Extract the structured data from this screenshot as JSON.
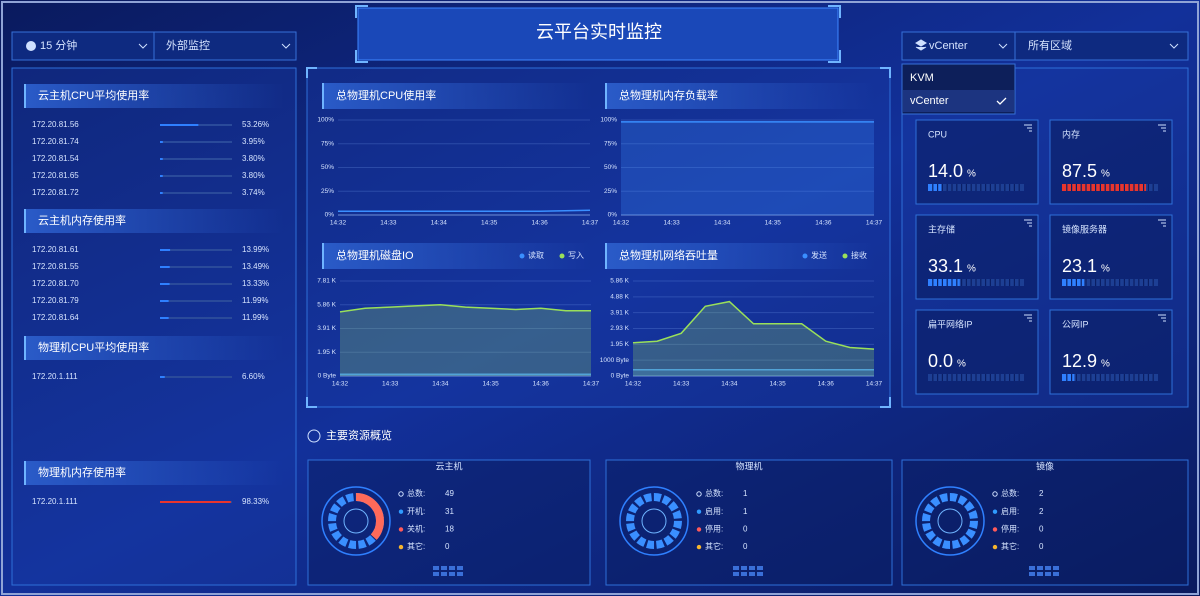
{
  "header": {
    "title": "云平台实时监控"
  },
  "toolbar": {
    "time": "15 分钟",
    "monitor": "外部监控",
    "platform": "vCenter",
    "region": "所有区域",
    "dropdown_items": [
      "KVM",
      "vCenter"
    ]
  },
  "left_panel": [
    {
      "title": "云主机CPU平均使用率",
      "color": "#2f80ff",
      "rows": [
        {
          "ip": "172.20.81.56",
          "value": 53.26,
          "label": "53.26%"
        },
        {
          "ip": "172.20.81.74",
          "value": 3.95,
          "label": "3.95%"
        },
        {
          "ip": "172.20.81.54",
          "value": 3.8,
          "label": "3.80%"
        },
        {
          "ip": "172.20.81.65",
          "value": 3.8,
          "label": "3.80%"
        },
        {
          "ip": "172.20.81.72",
          "value": 3.74,
          "label": "3.74%"
        }
      ]
    },
    {
      "title": "云主机内存使用率",
      "color": "#2f80ff",
      "rows": [
        {
          "ip": "172.20.81.61",
          "value": 13.99,
          "label": "13.99%"
        },
        {
          "ip": "172.20.81.55",
          "value": 13.49,
          "label": "13.49%"
        },
        {
          "ip": "172.20.81.70",
          "value": 13.33,
          "label": "13.33%"
        },
        {
          "ip": "172.20.81.79",
          "value": 11.99,
          "label": "11.99%"
        },
        {
          "ip": "172.20.81.64",
          "value": 11.99,
          "label": "11.99%"
        }
      ]
    },
    {
      "title": "物理机CPU平均使用率",
      "color": "#2f80ff",
      "rows": [
        {
          "ip": "172.20.1.111",
          "value": 6.6,
          "label": "6.60%"
        }
      ]
    },
    {
      "title": "物理机内存使用率",
      "color": "#e8352e",
      "rows": [
        {
          "ip": "172.20.1.111",
          "value": 98.33,
          "label": "98.33%"
        }
      ]
    }
  ],
  "chart_data": [
    {
      "type": "line",
      "title": "总物理机CPU使用率",
      "x": [
        "14:32",
        "14:33",
        "14:34",
        "14:35",
        "14:36",
        "14:37"
      ],
      "series": [
        {
          "color": "#3a8fff",
          "values": [
            4,
            4,
            4,
            4,
            4,
            5
          ]
        }
      ],
      "ylim": [
        0,
        100
      ],
      "yticks": [
        {
          "value": 0,
          "label": "0%"
        },
        {
          "value": 25,
          "label": "25%"
        },
        {
          "value": 50,
          "label": "50%"
        },
        {
          "value": 75,
          "label": "75%"
        },
        {
          "value": 100,
          "label": "100%"
        }
      ]
    },
    {
      "type": "area",
      "title": "总物理机内存负载率",
      "x": [
        "14:32",
        "14:33",
        "14:34",
        "14:35",
        "14:36",
        "14:37"
      ],
      "series": [
        {
          "color": "#3a8fff",
          "values": [
            98,
            98,
            98,
            98,
            98,
            98
          ]
        }
      ],
      "ylim": [
        0,
        100
      ],
      "yticks": [
        {
          "value": 0,
          "label": "0%"
        },
        {
          "value": 25,
          "label": "25%"
        },
        {
          "value": 50,
          "label": "50%"
        },
        {
          "value": 75,
          "label": "75%"
        },
        {
          "value": 100,
          "label": "100%"
        }
      ]
    },
    {
      "type": "area",
      "title": "总物理机磁盘IO",
      "x": [
        "14:32",
        null,
        "14:33",
        null,
        "14:34",
        null,
        "14:35",
        null,
        "14:36",
        null,
        "14:37"
      ],
      "series": [
        {
          "name": "读取",
          "color": "#3a8fff",
          "values": [
            150,
            150,
            150,
            150,
            150,
            150,
            150,
            150,
            150,
            150,
            150
          ]
        },
        {
          "name": "写入",
          "color": "#9ae05a",
          "values": [
            5400,
            5700,
            5800,
            5900,
            6000,
            5800,
            5700,
            5600,
            5700,
            5500,
            5500
          ]
        }
      ],
      "ylim": [
        0,
        8000
      ],
      "yticks": [
        {
          "value": 0,
          "label": "0 Byte"
        },
        {
          "value": 2000,
          "label": "1.95 K"
        },
        {
          "value": 4000,
          "label": "3.91 K"
        },
        {
          "value": 6000,
          "label": "5.86 K"
        },
        {
          "value": 8000,
          "label": "7.81 K"
        }
      ]
    },
    {
      "type": "area",
      "title": "总物理机网络吞吐量",
      "x": [
        "14:32",
        null,
        "14:33",
        null,
        "14:34",
        null,
        "14:35",
        null,
        "14:36",
        null,
        "14:37"
      ],
      "series": [
        {
          "name": "发送",
          "color": "#3a8fff",
          "values": [
            400,
            400,
            400,
            400,
            400,
            400,
            400,
            400,
            400,
            400,
            400
          ]
        },
        {
          "name": "接收",
          "color": "#9ae05a",
          "values": [
            2100,
            2200,
            2700,
            4400,
            4700,
            3300,
            3300,
            3300,
            2200,
            1800,
            1700
          ]
        }
      ],
      "ylim": [
        0,
        6000
      ],
      "yticks": [
        {
          "value": 0,
          "label": "0 Byte"
        },
        {
          "value": 1000,
          "label": "1000 Byte"
        },
        {
          "value": 2000,
          "label": "1.95 K"
        },
        {
          "value": 3000,
          "label": "2.93 K"
        },
        {
          "value": 4000,
          "label": "3.91 K"
        },
        {
          "value": 5000,
          "label": "4.88 K"
        },
        {
          "value": 6000,
          "label": "5.86 K"
        }
      ]
    }
  ],
  "gauges": [
    {
      "name": "CPU",
      "value": 14.0,
      "label": "14.0",
      "unit": "%",
      "color": "#2f80ff"
    },
    {
      "name": "内存",
      "value": 87.5,
      "label": "87.5",
      "unit": "%",
      "color": "#e8352e"
    },
    {
      "name": "主存储",
      "value": 33.1,
      "label": "33.1",
      "unit": "%",
      "color": "#2f80ff"
    },
    {
      "name": "镜像服务器",
      "value": 23.1,
      "label": "23.1",
      "unit": "%",
      "color": "#2f80ff"
    },
    {
      "name": "扁平网络IP",
      "value": 0.0,
      "label": "0.0",
      "unit": "%",
      "color": "#2f80ff"
    },
    {
      "name": "公网IP",
      "value": 12.9,
      "label": "12.9",
      "unit": "%",
      "color": "#2f80ff"
    }
  ],
  "overview": {
    "title": "主要资源概览",
    "cards": [
      {
        "title": "云主机",
        "stats": [
          {
            "label": "总数:",
            "value": 49
          },
          {
            "label": "开机:",
            "value": 31
          },
          {
            "label": "关机:",
            "value": 18
          },
          {
            "label": "其它:",
            "value": 0
          }
        ]
      },
      {
        "title": "物理机",
        "stats": [
          {
            "label": "总数:",
            "value": 1
          },
          {
            "label": "启用:",
            "value": 1
          },
          {
            "label": "停用:",
            "value": 0
          },
          {
            "label": "其它:",
            "value": 0
          }
        ]
      },
      {
        "title": "镜像",
        "stats": [
          {
            "label": "总数:",
            "value": 2
          },
          {
            "label": "启用:",
            "value": 2
          },
          {
            "label": "停用:",
            "value": 0
          },
          {
            "label": "其它:",
            "value": 0
          }
        ]
      }
    ]
  }
}
